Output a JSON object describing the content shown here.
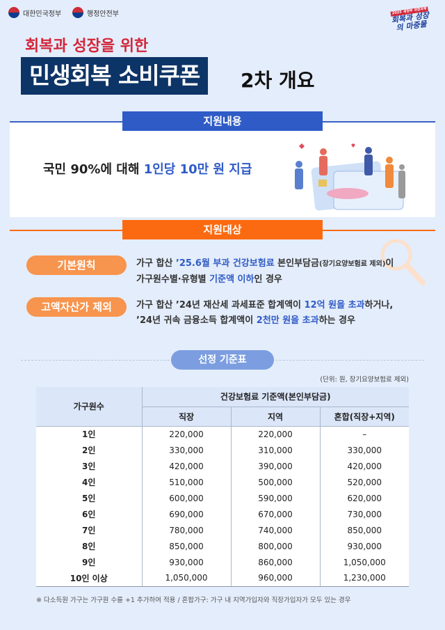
{
  "header": {
    "logos": [
      "대한민국정부",
      "행정안전부"
    ],
    "campaign": {
      "tag": "2025 새정부 국정과제",
      "text": "회복과 성장의 마중물"
    }
  },
  "subtitle": "회복과 성장을 위한",
  "title": "민생회복 소비쿠폰",
  "title_suffix": "2차 개요",
  "support": {
    "heading": "지원내용",
    "lead_prefix": "국민 90%에 대해 ",
    "lead_highlight": "1인당 10만 원 지급"
  },
  "target": {
    "heading": "지원대상",
    "basic": {
      "label": "기본원칙",
      "t1": "가구 합산 ",
      "h1": "’25.6월 부과 건강보험료",
      "t2": " 본인부담금",
      "s1": "(장기요양보험료 제외)",
      "t3": "이",
      "t4": "가구원수별·유형별 ",
      "h2": "기준액 이하",
      "t5": "인 경우"
    },
    "asset": {
      "label": "고액자산가 제외",
      "t1": "가구 합산 ’24년 재산세 과세표준 합계액이 ",
      "h1": "12억 원을 초과",
      "t2": "하거나,",
      "t3": "’24년 귀속 금융소득 합계액이 ",
      "h2": "2천만 원을 초과",
      "t4": "하는 경우"
    }
  },
  "selection": {
    "heading": "선정 기준표",
    "unit": "(단위: 원, 장기요양보험료 제외)",
    "headers": {
      "household": "가구원수",
      "group": "건강보험료 기준액(본인부담금)",
      "cols": [
        "직장",
        "지역",
        "혼합(직장+지역)"
      ]
    },
    "rows": [
      [
        "1인",
        "220,000",
        "220,000",
        "–"
      ],
      [
        "2인",
        "330,000",
        "310,000",
        "330,000"
      ],
      [
        "3인",
        "420,000",
        "390,000",
        "420,000"
      ],
      [
        "4인",
        "510,000",
        "500,000",
        "520,000"
      ],
      [
        "5인",
        "600,000",
        "590,000",
        "620,000"
      ],
      [
        "6인",
        "690,000",
        "670,000",
        "730,000"
      ],
      [
        "7인",
        "780,000",
        "740,000",
        "850,000"
      ],
      [
        "8인",
        "850,000",
        "800,000",
        "930,000"
      ],
      [
        "9인",
        "930,000",
        "860,000",
        "1,050,000"
      ],
      [
        "10인 이상",
        "1,050,000",
        "960,000",
        "1,230,000"
      ]
    ],
    "note": "※ 다소득원 가구는 가구원 수를 +1 추가하여 적용 / 혼합가구: 가구 내 지역가입자와 직장가입자가 모두 있는 경우"
  },
  "colors": {
    "navy": "#0d3466",
    "red": "#d3263a",
    "blue": "#2f5bc7",
    "orange": "#fb6a10",
    "pill": "#f7944d"
  }
}
